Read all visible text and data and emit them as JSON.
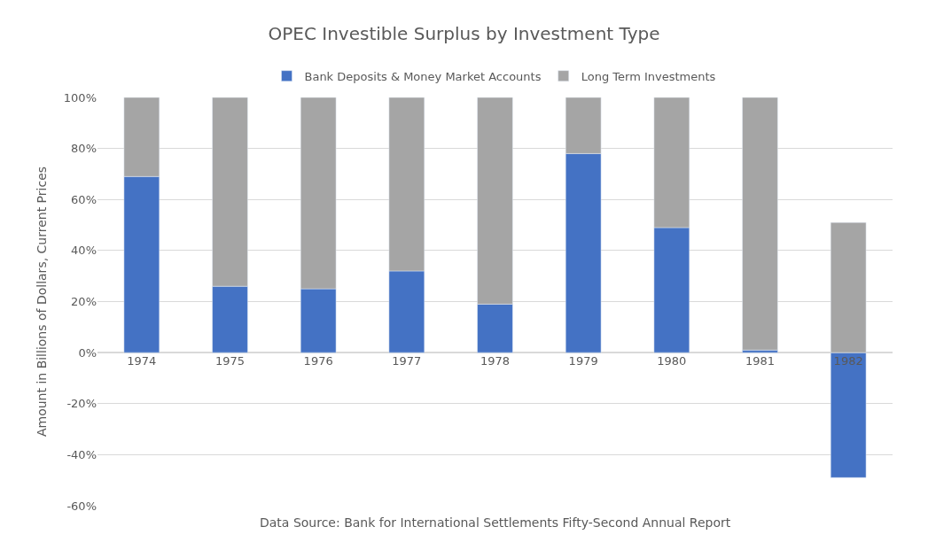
{
  "chart_data": {
    "type": "bar",
    "title": "OPEC Investible Surplus by Investment Type",
    "ylabel": "Amount in Billions of Dollars, Current Prices",
    "categories": [
      "1974",
      "1975",
      "1976",
      "1977",
      "1978",
      "1979",
      "1980",
      "1981",
      "1982"
    ],
    "series": [
      {
        "name": "Bank Deposits & Money Market Accounts",
        "color": "#4472c4",
        "values": [
          69,
          26,
          25,
          32,
          19,
          78,
          49,
          1,
          -49
        ]
      },
      {
        "name": "Long Term Investments",
        "color": "#a5a5a5",
        "values": [
          31,
          74,
          75,
          68,
          81,
          22,
          51,
          99,
          51
        ]
      }
    ],
    "stacked": true,
    "ylim": [
      -60,
      100
    ],
    "yticks": [
      {
        "value": -60,
        "label": "-60%"
      },
      {
        "value": -40,
        "label": "-40%"
      },
      {
        "value": -20,
        "label": "-20%"
      },
      {
        "value": 0,
        "label": "0%"
      },
      {
        "value": 20,
        "label": "20%"
      },
      {
        "value": 40,
        "label": "40%"
      },
      {
        "value": 60,
        "label": "60%"
      },
      {
        "value": 80,
        "label": "80%"
      },
      {
        "value": 100,
        "label": "100%"
      }
    ],
    "grid": "y",
    "legend": "top",
    "annotations": [
      "Data Source: Bank for International Settlements Fifty-Second Annual Report"
    ]
  }
}
